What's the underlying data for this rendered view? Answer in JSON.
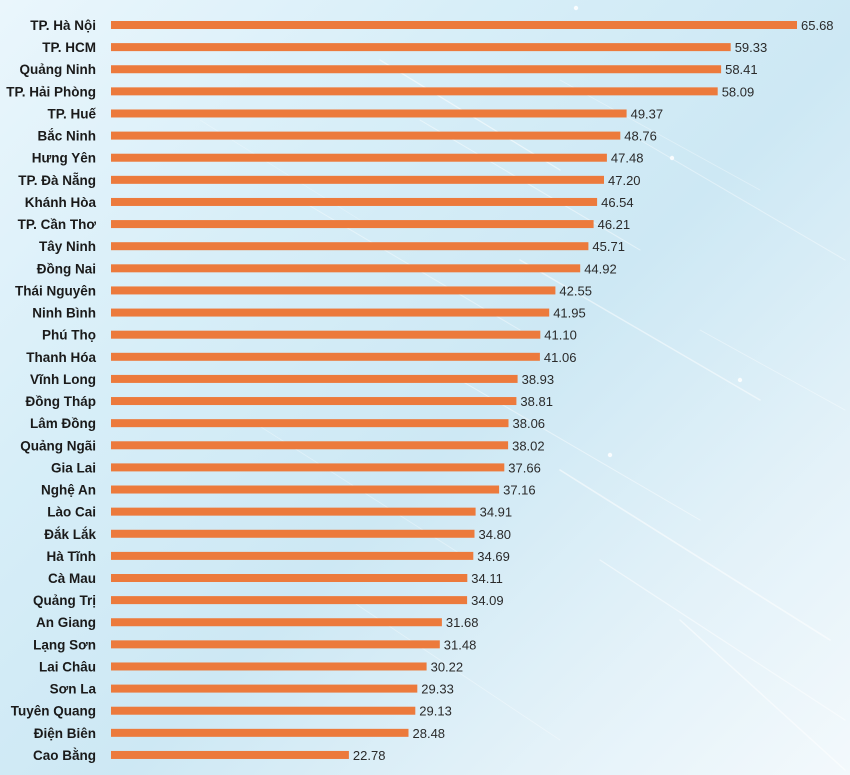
{
  "chart_data": {
    "type": "bar",
    "orientation": "horizontal",
    "bar_color": "#ec7a3c",
    "categories": [
      "TP. Hà Nội",
      "TP. HCM",
      "Quảng Ninh",
      "TP. Hải Phòng",
      "TP. Huế",
      "Bắc Ninh",
      "Hưng Yên",
      "TP. Đà Nẵng",
      "Khánh Hòa",
      "TP. Cần Thơ",
      "Tây Ninh",
      "Đồng Nai",
      "Thái Nguyên",
      "Ninh Bình",
      "Phú Thọ",
      "Thanh Hóa",
      "Vĩnh Long",
      "Đồng Tháp",
      "Lâm Đồng",
      "Quảng Ngãi",
      "Gia Lai",
      "Nghệ An",
      "Lào Cai",
      "Đắk Lắk",
      "Hà Tĩnh",
      "Cà Mau",
      "Quảng Trị",
      "An Giang",
      "Lạng Sơn",
      "Lai Châu",
      "Sơn La",
      "Tuyên Quang",
      "Điện Biên",
      "Cao Bằng"
    ],
    "values": [
      65.68,
      59.33,
      58.41,
      58.09,
      49.37,
      48.76,
      47.48,
      47.2,
      46.54,
      46.21,
      45.71,
      44.92,
      42.55,
      41.95,
      41.1,
      41.06,
      38.93,
      38.81,
      38.06,
      38.02,
      37.66,
      37.16,
      34.91,
      34.8,
      34.69,
      34.11,
      34.09,
      31.68,
      31.48,
      30.22,
      29.33,
      29.13,
      28.48,
      22.78
    ],
    "value_labels": [
      "65.68",
      "59.33",
      "58.41",
      "58.09",
      "49.37",
      "48.76",
      "47.48",
      "47.20",
      "46.54",
      "46.21",
      "45.71",
      "44.92",
      "42.55",
      "41.95",
      "41.10",
      "41.06",
      "38.93",
      "38.81",
      "38.06",
      "38.02",
      "37.66",
      "37.16",
      "34.91",
      "34.80",
      "34.69",
      "34.11",
      "34.09",
      "31.68",
      "31.48",
      "30.22",
      "29.33",
      "29.13",
      "28.48",
      "22.78"
    ],
    "xlim": [
      0,
      65.68
    ],
    "grid": false,
    "legend": "none"
  }
}
